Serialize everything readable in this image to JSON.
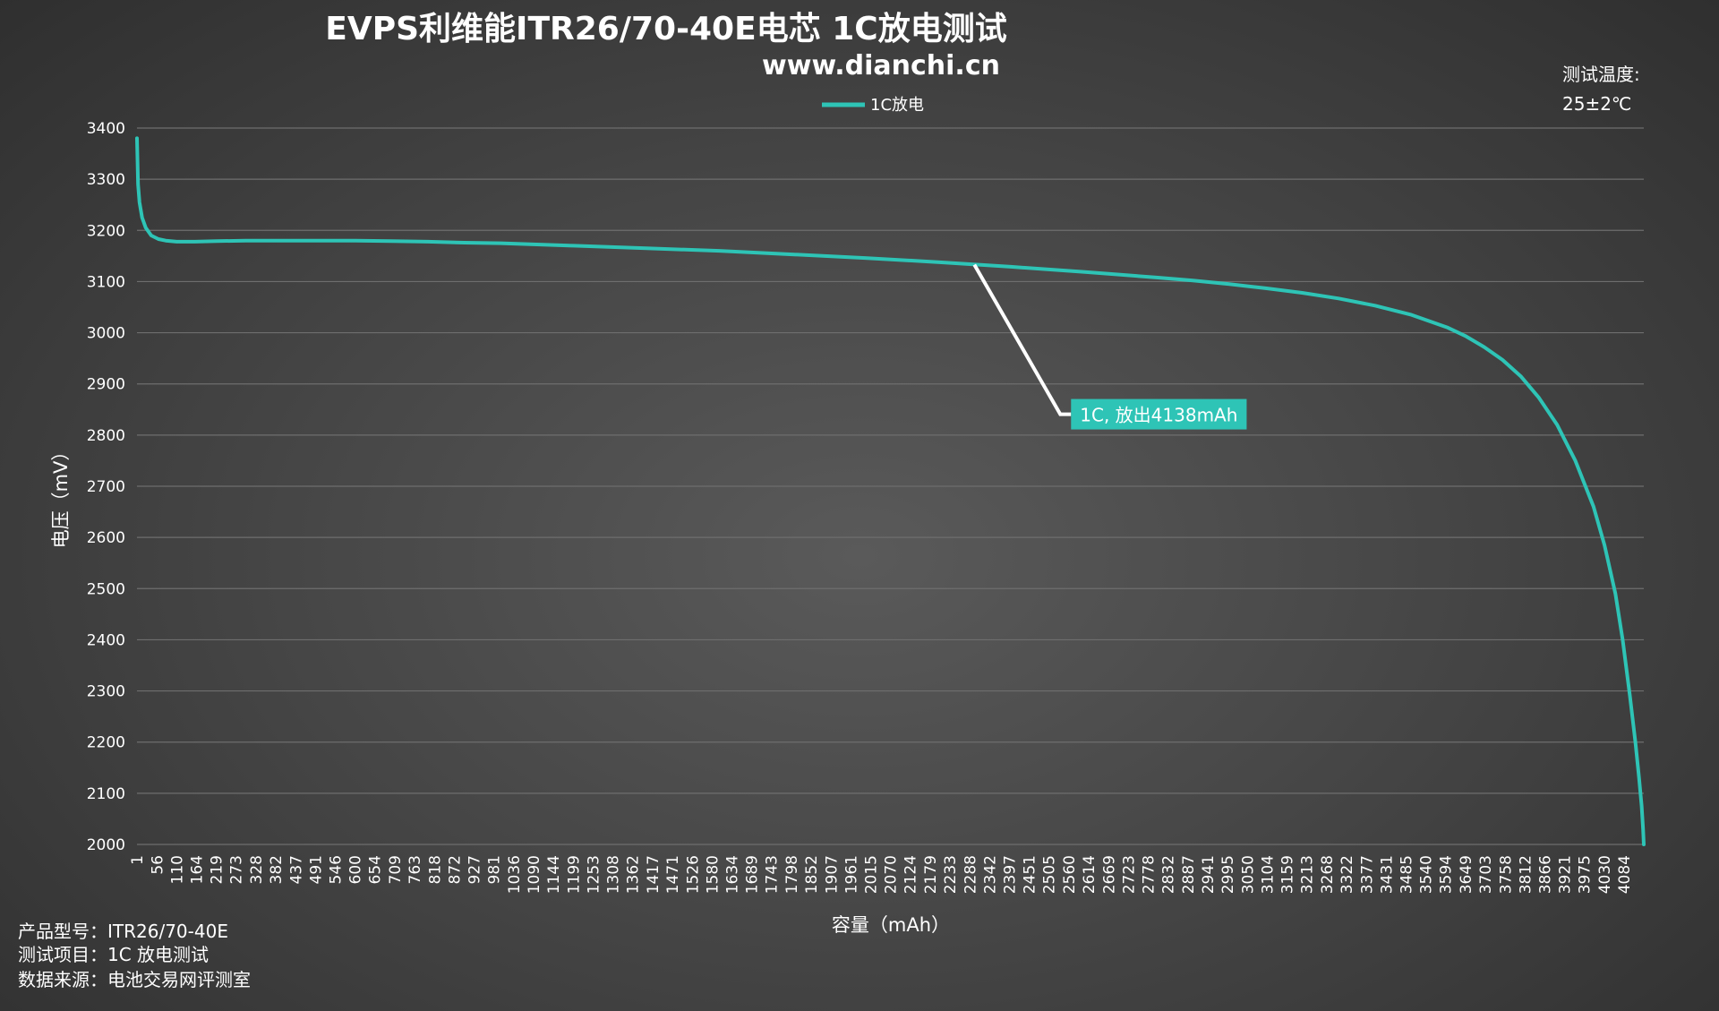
{
  "chart_data": {
    "type": "line",
    "title": "EVPS利维能ITR26/70-40E电芯 1C放电测试",
    "subtitle": "www.dianchi.cn",
    "xlabel": "容量（mAh）",
    "ylabel": "电压（mV）",
    "xlim": [
      1,
      4138
    ],
    "ylim": [
      2000,
      3400
    ],
    "y_ticks": [
      2000,
      2100,
      2200,
      2300,
      2400,
      2500,
      2600,
      2700,
      2800,
      2900,
      3000,
      3100,
      3200,
      3300,
      3400
    ],
    "x_tick_labels": [
      "1",
      "56",
      "110",
      "164",
      "219",
      "273",
      "328",
      "382",
      "437",
      "491",
      "546",
      "600",
      "654",
      "709",
      "763",
      "818",
      "872",
      "927",
      "981",
      "1036",
      "1090",
      "1144",
      "1199",
      "1253",
      "1308",
      "1362",
      "1417",
      "1471",
      "1526",
      "1580",
      "1634",
      "1689",
      "1743",
      "1798",
      "1852",
      "1907",
      "1961",
      "2015",
      "2070",
      "2124",
      "2179",
      "2233",
      "2288",
      "2342",
      "2397",
      "2451",
      "2505",
      "2560",
      "2614",
      "2669",
      "2723",
      "2778",
      "2832",
      "2887",
      "2941",
      "2995",
      "3050",
      "3104",
      "3159",
      "3213",
      "3268",
      "3322",
      "3377",
      "3431",
      "3485",
      "3540",
      "3594",
      "3649",
      "3703",
      "3758",
      "3812",
      "3866",
      "3921",
      "3975",
      "4030",
      "4084"
    ],
    "legend": {
      "position": "top",
      "entries": [
        "1C放电"
      ]
    },
    "grid": "horizontal",
    "series": [
      {
        "name": "1C放电",
        "color": "#2ec4b6",
        "x": [
          1,
          4,
          8,
          15,
          25,
          40,
          60,
          80,
          110,
          160,
          220,
          300,
          400,
          500,
          600,
          700,
          800,
          900,
          1000,
          1200,
          1400,
          1600,
          1800,
          2000,
          2200,
          2400,
          2600,
          2800,
          2900,
          3000,
          3100,
          3200,
          3300,
          3400,
          3500,
          3600,
          3650,
          3700,
          3750,
          3800,
          3850,
          3900,
          3950,
          4000,
          4030,
          4060,
          4080,
          4100,
          4115,
          4125,
          4132,
          4136,
          4138
        ],
        "y": [
          3380,
          3290,
          3255,
          3225,
          3205,
          3190,
          3183,
          3180,
          3178,
          3178,
          3179,
          3180,
          3180,
          3180,
          3180,
          3179,
          3178,
          3176,
          3175,
          3170,
          3165,
          3160,
          3153,
          3146,
          3138,
          3129,
          3119,
          3108,
          3102,
          3095,
          3087,
          3078,
          3067,
          3053,
          3035,
          3010,
          2993,
          2972,
          2947,
          2915,
          2873,
          2820,
          2750,
          2660,
          2585,
          2490,
          2400,
          2290,
          2200,
          2130,
          2075,
          2030,
          2000
        ]
      }
    ],
    "annotations": [
      {
        "text": "1C, 放出4138mAh",
        "anchor_x": 2300,
        "anchor_y": 3133,
        "box_color": "#2ec4b6"
      }
    ]
  },
  "side_info": {
    "temperature_label": "测试温度:",
    "temperature_value": "25±2℃",
    "model": "产品型号：ITR26/70-40E",
    "test_item": "测试项目：1C 放电测试",
    "source": "数据来源：电池交易网评测室"
  },
  "colors": {
    "line": "#2ec4b6",
    "grid": "#6e6e6e",
    "text": "#ffffff",
    "leader": "#ffffff"
  }
}
